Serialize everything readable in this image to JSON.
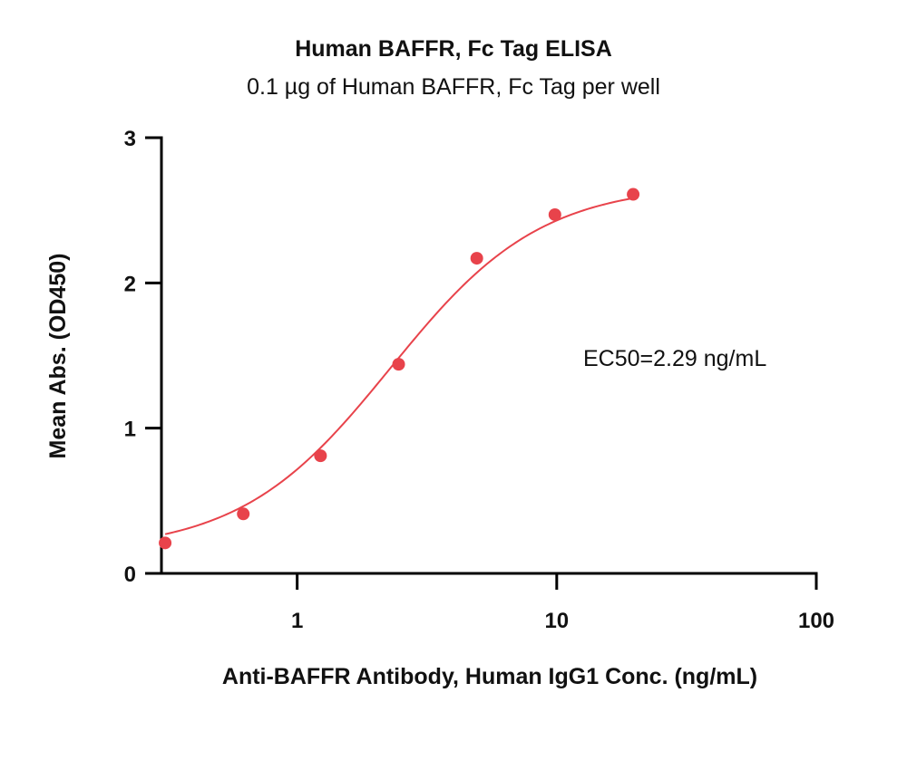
{
  "chart_data": {
    "type": "scatter",
    "title": "Human BAFFR, Fc Tag ELISA",
    "subtitle": "0.1 µg of Human BAFFR, Fc Tag per well",
    "xlabel": "Anti-BAFFR Antibody, Human IgG1 Conc. (ng/mL)",
    "ylabel": "Mean Abs. (OD450)",
    "x_scale": "log",
    "xlim": [
      0.3,
      100
    ],
    "ylim": [
      0,
      3
    ],
    "x_ticks": [
      "1",
      "10",
      "100"
    ],
    "y_ticks": [
      "0",
      "1",
      "2",
      "3"
    ],
    "grid": false,
    "annotation": "EC50=2.29 ng/mL",
    "color": "#e8434b",
    "series": [
      {
        "x": [
          0.31,
          0.62,
          1.23,
          2.46,
          4.92,
          9.84,
          19.7
        ],
        "y": [
          0.21,
          0.41,
          0.81,
          1.44,
          2.17,
          2.47,
          2.61
        ]
      }
    ],
    "fit": {
      "bottom": 0.15,
      "top": 2.68,
      "ec50": 2.29,
      "hill": 1.5
    }
  }
}
